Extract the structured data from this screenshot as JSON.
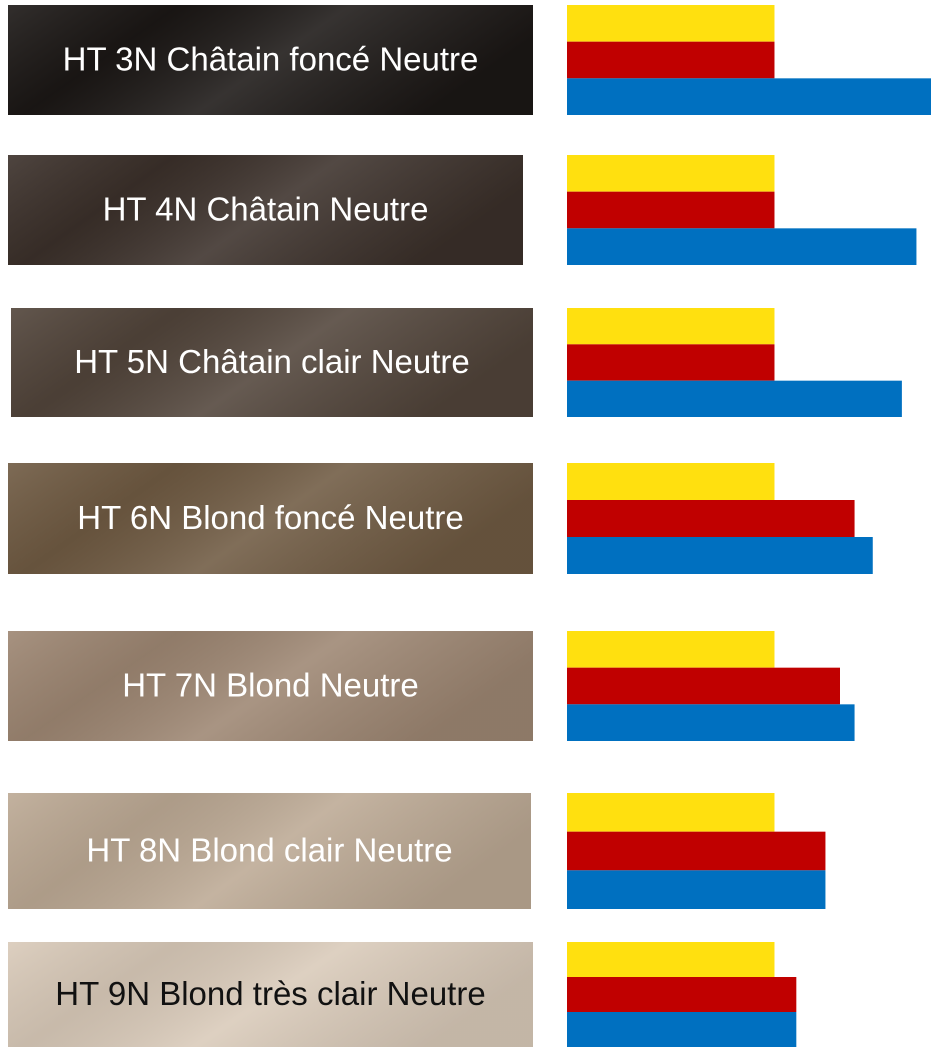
{
  "chart_data": {
    "type": "bar",
    "categories": [
      "HT 3N Châtain foncé Neutre",
      "HT 4N Châtain Neutre",
      "HT 5N Châtain clair Neutre",
      "HT 6N Blond foncé Neutre",
      "HT 7N Blond Neutre",
      "HT 8N Blond clair Neutre",
      "HT 9N Blond très clair Neutre"
    ],
    "swatch_colors": [
      "#1b1715",
      "#3b302a",
      "#51443a",
      "#6f5a42",
      "#9d8672",
      "#bca994",
      "#d9cab9"
    ],
    "label_colors": [
      "#ffffff",
      "#ffffff",
      "#ffffff",
      "#ffffff",
      "#ffffff",
      "#ffffff",
      "#111111"
    ],
    "series": [
      {
        "color": "#ffe00f",
        "values": [
          57,
          57,
          57,
          57,
          57,
          57,
          57
        ]
      },
      {
        "color": "#c00000",
        "values": [
          57,
          57,
          57,
          79,
          75,
          71,
          63
        ]
      },
      {
        "color": "#0070c0",
        "values": [
          100,
          96,
          92,
          84,
          79,
          71,
          63
        ]
      }
    ],
    "xlim": [
      0,
      100
    ]
  }
}
